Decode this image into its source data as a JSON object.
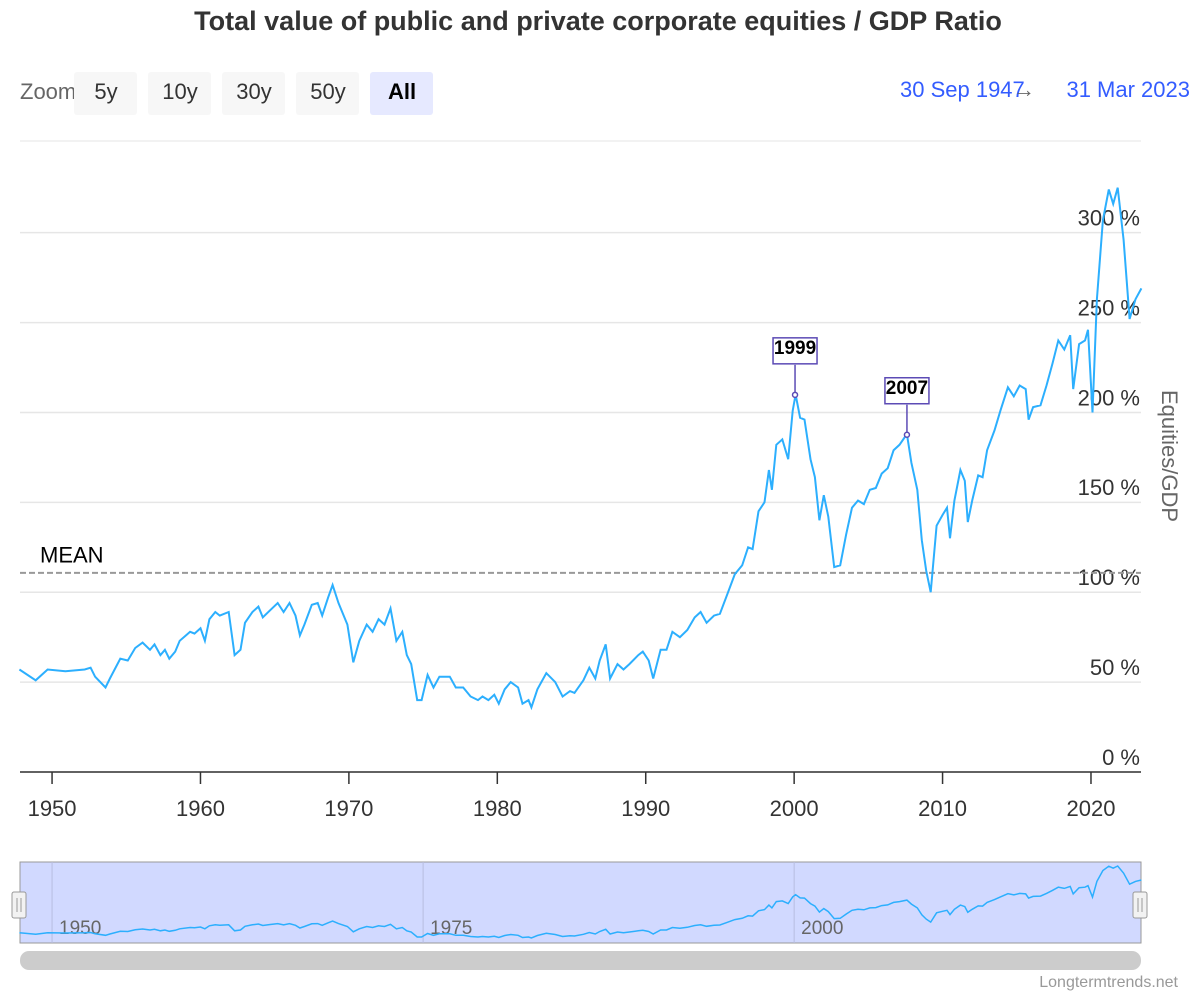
{
  "chart_data": {
    "type": "line",
    "title": "Total value of public and private corporate equities / GDP Ratio",
    "y_axis_title": "Equities/GDP",
    "color": "#2caffe",
    "x": [
      1947.8,
      1948.9,
      1949.7,
      1950.9,
      1952.2,
      1952.6,
      1952.9,
      1953.6,
      1953.9,
      1954.6,
      1955.1,
      1955.6,
      1956.1,
      1956.6,
      1956.9,
      1957.3,
      1957.6,
      1957.9,
      1958.3,
      1958.6,
      1959.3,
      1959.6,
      1960,
      1960.3,
      1960.6,
      1961,
      1961.3,
      1961.9,
      1962.3,
      1962.7,
      1963,
      1963.5,
      1963.9,
      1964.2,
      1964.7,
      1965.2,
      1965.6,
      1966,
      1966.4,
      1966.7,
      1967,
      1967.5,
      1967.9,
      1968.2,
      1968.6,
      1968.9,
      1969.3,
      1969.9,
      1970.3,
      1970.7,
      1971.2,
      1971.6,
      1972,
      1972.4,
      1972.8,
      1973.2,
      1973.6,
      1973.9,
      1974.2,
      1974.6,
      1974.9,
      1975.3,
      1975.7,
      1976.1,
      1976.8,
      1977.2,
      1977.7,
      1978.2,
      1978.7,
      1979,
      1979.4,
      1979.8,
      1980.1,
      1980.5,
      1980.9,
      1981.4,
      1981.7,
      1982.1,
      1982.3,
      1982.7,
      1983.3,
      1983.9,
      1984.4,
      1984.9,
      1985.2,
      1985.8,
      1986.2,
      1986.6,
      1986.9,
      1987.3,
      1987.6,
      1988.1,
      1988.5,
      1988.9,
      1989.5,
      1989.8,
      1990.2,
      1990.5,
      1991,
      1991.4,
      1991.8,
      1992.3,
      1992.8,
      1993.3,
      1993.7,
      1994.1,
      1994.6,
      1995,
      1995.5,
      1996,
      1996.5,
      1996.9,
      1997.2,
      1997.6,
      1998,
      1998.3,
      1998.5,
      1998.8,
      1999.2,
      1999.6,
      1999.9,
      2000.1,
      2000.4,
      2000.7,
      2001.1,
      2001.4,
      2001.7,
      2002,
      2002.3,
      2002.7,
      2003.1,
      2003.5,
      2003.9,
      2004.3,
      2004.7,
      2005.1,
      2005.5,
      2005.9,
      2006.3,
      2006.7,
      2007.1,
      2007.6,
      2007.9,
      2008.3,
      2008.6,
      2008.9,
      2009.2,
      2009.6,
      2010,
      2010.3,
      2010.5,
      2010.8,
      2011.2,
      2011.5,
      2011.7,
      2012,
      2012.4,
      2012.7,
      2013,
      2013.5,
      2013.9,
      2014.4,
      2014.8,
      2015.2,
      2015.6,
      2015.8,
      2016.1,
      2016.6,
      2017,
      2017.4,
      2017.8,
      2018.2,
      2018.6,
      2018.8,
      2019.2,
      2019.6,
      2019.8,
      2020.1,
      2020.4,
      2020.8,
      2021.2,
      2021.5,
      2021.8,
      2022.2,
      2022.6,
      2023,
      2023.4
    ],
    "values": [
      57,
      51,
      57,
      56,
      57,
      58,
      53,
      47,
      52,
      63,
      62,
      69,
      72,
      68,
      71,
      65,
      68,
      63,
      67,
      73,
      78,
      77,
      80,
      73,
      85,
      89,
      87,
      89,
      65,
      68,
      83,
      89,
      92,
      86,
      90,
      94,
      89,
      94,
      87,
      76,
      82,
      93,
      94,
      87,
      97,
      104,
      94,
      82,
      61,
      73,
      82,
      78,
      85,
      82,
      91,
      73,
      78,
      65,
      60,
      40,
      40,
      54,
      47,
      53,
      53,
      47,
      47,
      42,
      40,
      42,
      40,
      43,
      38,
      46,
      50,
      47,
      38,
      40,
      36,
      46,
      55,
      50,
      42,
      45,
      44,
      51,
      58,
      52,
      62,
      71,
      52,
      60,
      57,
      60,
      65,
      67,
      62,
      52,
      68,
      68,
      78,
      75,
      79,
      86,
      89,
      83,
      87,
      88,
      99,
      110,
      115,
      125,
      124,
      145,
      150,
      168,
      157,
      182,
      185,
      174,
      201,
      210,
      197,
      196,
      174,
      164,
      140,
      154,
      142,
      114,
      115,
      132,
      147,
      151,
      149,
      157,
      158,
      166,
      169,
      179,
      182,
      188,
      172,
      157,
      129,
      112,
      100,
      137,
      143,
      147,
      130,
      151,
      168,
      162,
      139,
      151,
      165,
      164,
      179,
      190,
      201,
      214,
      209,
      215,
      213,
      196,
      203,
      204,
      215,
      227,
      240,
      235,
      243,
      213,
      238,
      240,
      246,
      200,
      263,
      307,
      324,
      316,
      325,
      296,
      252,
      263,
      269
    ],
    "xlim": [
      1947.84,
      2023.37
    ],
    "ylim": [
      0,
      351
    ],
    "xticks": [
      1950,
      1960,
      1970,
      1980,
      1990,
      2000,
      2010,
      2020
    ],
    "yticks": [
      {
        "value": 0,
        "label": "0 %"
      },
      {
        "value": 50,
        "label": "50 %"
      },
      {
        "value": 100,
        "label": "100 %"
      },
      {
        "value": 150,
        "label": "150 %"
      },
      {
        "value": 200,
        "label": "200 %"
      },
      {
        "value": 250,
        "label": "250 %"
      },
      {
        "value": 300,
        "label": "300 %"
      }
    ],
    "grid": true,
    "mean": {
      "label": "MEAN",
      "value": 110.8
    },
    "flags": [
      {
        "label": "1999",
        "x": 2000.06,
        "value": 209.8
      },
      {
        "label": "2007",
        "x": 2007.6,
        "value": 187.6
      }
    ],
    "navigator": {
      "xticks": [
        1950,
        1975,
        2000
      ]
    },
    "range_selector": {
      "label": "Zoom",
      "buttons": [
        "5y",
        "10y",
        "30y",
        "50y",
        "All"
      ],
      "selected": 4,
      "from": "30 Sep 1947",
      "separator": "→",
      "to": "31 Mar 2023"
    },
    "credits": "Longtermtrends.net"
  }
}
